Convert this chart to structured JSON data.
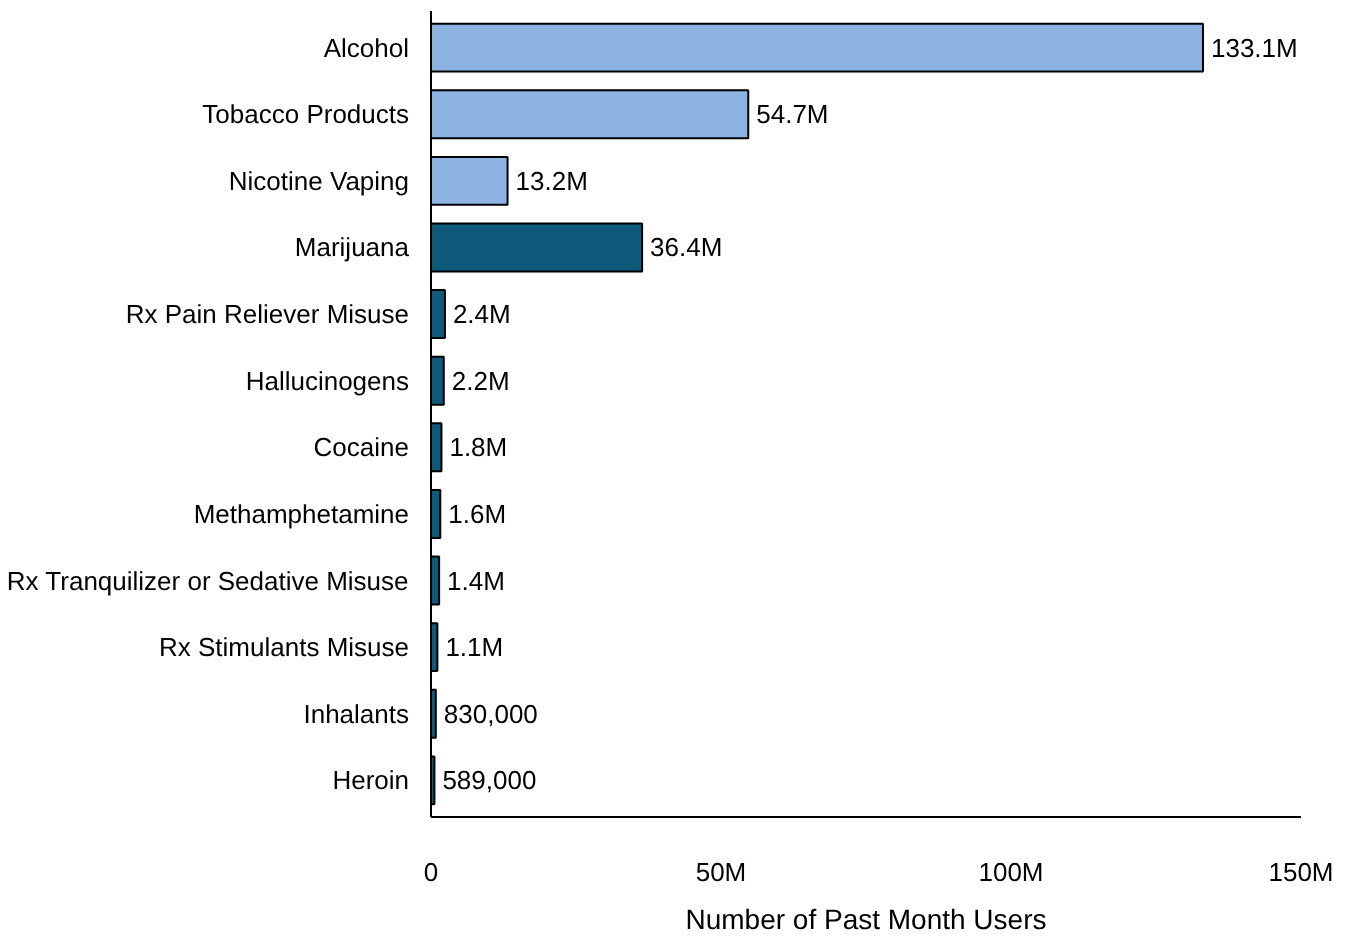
{
  "chart_data": {
    "type": "bar",
    "orientation": "horizontal",
    "xlabel": "Number of Past Month Users",
    "categories": [
      "Alcohol",
      "Tobacco Products",
      "Nicotine Vaping",
      "Marijuana",
      "Rx Pain Reliever Misuse",
      "Hallucinogens",
      "Cocaine",
      "Methamphetamine",
      "Rx Tranquilizer or Sedative Misuse",
      "Rx Stimulants Misuse",
      "Inhalants",
      "Heroin"
    ],
    "values": [
      133100000,
      54700000,
      13200000,
      36400000,
      2400000,
      2200000,
      1800000,
      1600000,
      1400000,
      1100000,
      830000,
      589000
    ],
    "value_labels": [
      "133.1M",
      "54.7M",
      "13.2M",
      "36.4M",
      "2.4M",
      "2.2M",
      "1.8M",
      "1.6M",
      "1.4M",
      "1.1M",
      "830,000",
      "589,000"
    ],
    "colors": [
      "#8db3e2",
      "#8db3e2",
      "#8db3e2",
      "#0f5a7b",
      "#0f5a7b",
      "#0f5a7b",
      "#0f5a7b",
      "#0f5a7b",
      "#0f5a7b",
      "#0f5a7b",
      "#0f5a7b",
      "#0f5a7b"
    ],
    "xlim": [
      0,
      150000000
    ],
    "xticks": [
      0,
      {
        "value": 50000000,
        "label": "50M"
      },
      {
        "value": 100000000,
        "label": "100M"
      },
      {
        "value": 150000000,
        "label": "150M"
      }
    ],
    "grid": false
  }
}
